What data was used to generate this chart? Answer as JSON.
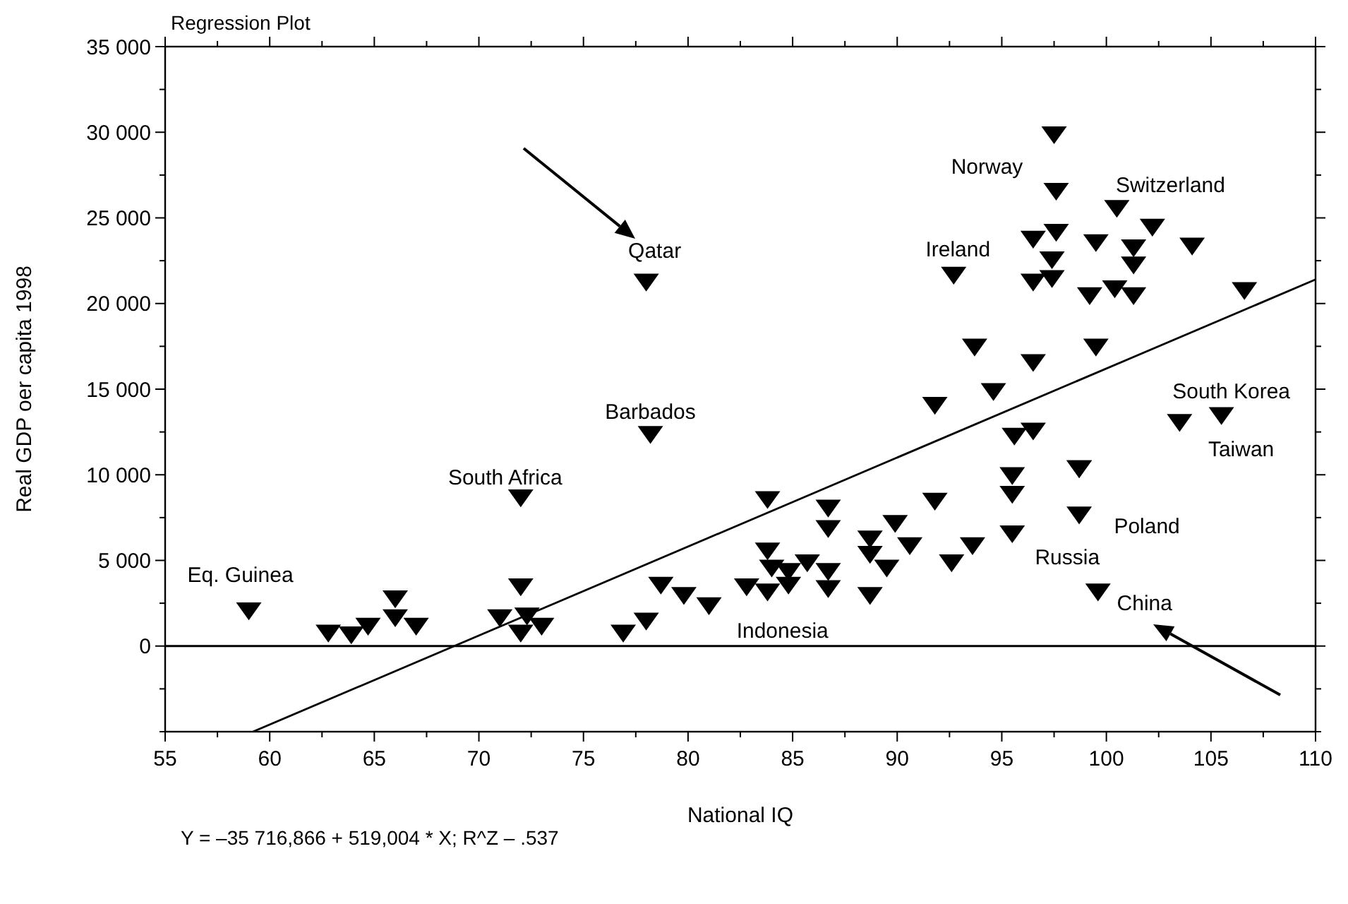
{
  "chart_data": {
    "type": "scatter",
    "title": "Regression Plot",
    "xlabel": "National IQ",
    "ylabel": "Real GDP oer capita 1998",
    "xlim": [
      55,
      110
    ],
    "ylim": [
      -5000,
      35000
    ],
    "xticks": [
      55,
      {
        "value": 57.5,
        "label": null
      },
      60,
      {
        "value": 62.5,
        "label": null
      },
      65,
      {
        "value": 67.5,
        "label": null
      },
      70,
      {
        "value": 72.5,
        "label": null
      },
      75,
      {
        "value": 77.5,
        "label": null
      },
      80,
      {
        "value": 82.5,
        "label": null
      },
      85,
      {
        "value": 87.5,
        "label": null
      },
      90,
      {
        "value": 92.5,
        "label": null
      },
      95,
      {
        "value": 97.5,
        "label": null
      },
      100,
      {
        "value": 102.5,
        "label": null
      },
      105,
      {
        "value": 107.5,
        "label": null
      },
      110
    ],
    "yticks": [
      {
        "value": -5000,
        "label": null
      },
      {
        "value": -2500,
        "label": null
      },
      0,
      {
        "value": 2500,
        "label": null
      },
      {
        "value": 5000,
        "label": "5 000"
      },
      {
        "value": 7500,
        "label": null
      },
      {
        "value": 10000,
        "label": "10 000"
      },
      {
        "value": 12500,
        "label": null
      },
      {
        "value": 15000,
        "label": "15 000"
      },
      {
        "value": 17500,
        "label": null
      },
      {
        "value": 20000,
        "label": "20 000"
      },
      {
        "value": 22500,
        "label": null
      },
      {
        "value": 25000,
        "label": "25 000"
      },
      {
        "value": 27500,
        "label": null
      },
      {
        "value": 30000,
        "label": "30 000"
      },
      {
        "value": 32500,
        "label": null
      },
      {
        "value": 35000,
        "label": "35 000"
      }
    ],
    "grid": false,
    "series": [
      {
        "color": "#000000",
        "marker": "triangle",
        "x": [
          59,
          62.8,
          63.9,
          64.7,
          66,
          66,
          67,
          71,
          72,
          72,
          72.3,
          73,
          72,
          76.9,
          78,
          78.7,
          79.8,
          81,
          78,
          78.2,
          83.8,
          83.8,
          84,
          84.8,
          82.8,
          83.8,
          84.8,
          85.7,
          86.7,
          86.7,
          86.7,
          86.7,
          88.7,
          88.7,
          88.7,
          89.9,
          90.6,
          89.5,
          91.8,
          92.6,
          93.6,
          95.5,
          95.5,
          95.5,
          98.7,
          98.7,
          99.6,
          97.5,
          97.6,
          100.5,
          96.5,
          97.6,
          97.4,
          96.5,
          97.4,
          99.5,
          102.2,
          101.3,
          101.3,
          104.1,
          99.2,
          100.4,
          101.3,
          106.6,
          92.7,
          93.7,
          96.5,
          99.5,
          94.6,
          91.8,
          95.6,
          96.5,
          98.7,
          103.5,
          105.5
        ],
        "values": [
          2100,
          800,
          700,
          1200,
          2800,
          1700,
          1200,
          1700,
          3500,
          800,
          1800,
          1200,
          8700,
          800,
          1500,
          3600,
          3000,
          2400,
          21300,
          12400,
          8600,
          5600,
          4600,
          4400,
          3500,
          3200,
          3600,
          4900,
          4400,
          3400,
          8100,
          6900,
          6300,
          5400,
          3000,
          7200,
          5900,
          4600,
          8500,
          4900,
          5900,
          10000,
          8900,
          6600,
          10400,
          7700,
          3200,
          29900,
          26600,
          25600,
          23800,
          24200,
          22600,
          21300,
          21500,
          23600,
          24500,
          23300,
          22300,
          23400,
          20500,
          20900,
          20500,
          20800,
          21700,
          17500,
          16600,
          17500,
          14900,
          14100,
          12300,
          12600,
          10400,
          13100,
          13500
        ]
      },
      {
        "type": "line",
        "color": "#000000",
        "marker": "none",
        "x": [
          59.2,
          110
        ],
        "values": [
          -5000,
          21400
        ]
      }
    ],
    "ref_lines": [
      {
        "axis": "y",
        "value": 0,
        "color": "#000000"
      }
    ],
    "annotations": [
      {
        "text": "Eq. Guinea",
        "x": 59,
        "y": 2100
      },
      {
        "text": "Qatar",
        "x": 78,
        "y": 21300
      },
      {
        "text": "Barbados",
        "x": 78.2,
        "y": 12400
      },
      {
        "text": "South Africa",
        "x": 72,
        "y": 8700
      },
      {
        "text": "Norway",
        "x": 97.6,
        "y": 26600
      },
      {
        "text": "Switzerland",
        "x": 100.5,
        "y": 25600
      },
      {
        "text": "Ireland",
        "x": 92.7,
        "y": 21700
      },
      {
        "text": "South Korea",
        "x": 105.5,
        "y": 13500
      },
      {
        "text": "Taiwan",
        "x": 105.5,
        "y": 13500
      },
      {
        "text": "Poland",
        "x": 98.7,
        "y": 7700
      },
      {
        "text": "Russia",
        "x": 95.5,
        "y": 6600
      },
      {
        "text": "China",
        "x": 99.6,
        "y": 3200
      },
      {
        "text": "Indonesia",
        "x": 88.7,
        "y": 3000
      },
      "Y = –35 716,866 + 519,004 * X; R^Z – .537"
    ]
  }
}
